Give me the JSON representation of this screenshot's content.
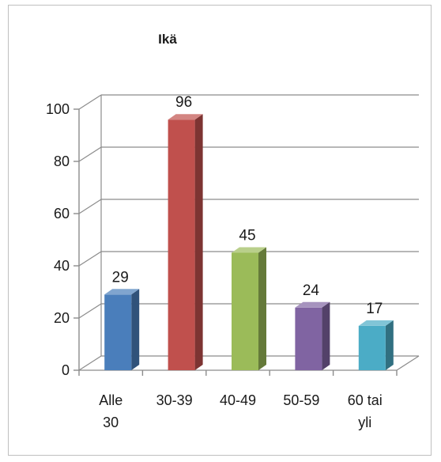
{
  "chart_data": {
    "type": "bar",
    "title": "Ikä",
    "xlabel": "",
    "ylabel": "",
    "categories": [
      [
        "Alle",
        "30"
      ],
      [
        "30-39"
      ],
      [
        "40-49"
      ],
      [
        "50-59"
      ],
      [
        "60 tai",
        "yli"
      ]
    ],
    "values": [
      29,
      96,
      45,
      24,
      17
    ],
    "colors": [
      "#4a7ebb",
      "#c0504d",
      "#9bbb59",
      "#8064a2",
      "#4bacc6"
    ],
    "ylim": [
      0,
      100
    ],
    "yticks": [
      0,
      20,
      40,
      60,
      80,
      100
    ],
    "grid": true,
    "legend": "none",
    "style": "3d-column"
  }
}
